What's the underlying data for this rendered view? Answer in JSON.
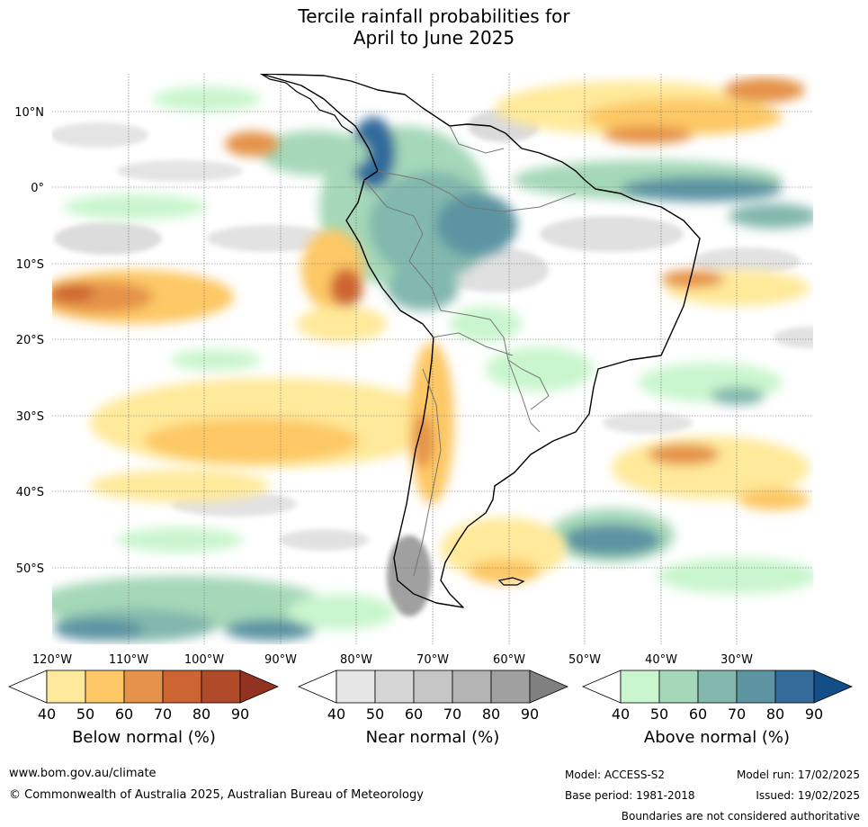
{
  "title_line1": "Tercile rainfall probabilities for",
  "title_line2": "April to June 2025",
  "map": {
    "lat_labels": [
      "10°N",
      "0°",
      "10°S",
      "20°S",
      "30°S",
      "40°S",
      "50°S"
    ],
    "lat_values": [
      10,
      0,
      -10,
      -20,
      -30,
      -40,
      -50
    ],
    "lon_labels": [
      "120°W",
      "110°W",
      "100°W",
      "90°W",
      "80°W",
      "70°W",
      "60°W",
      "50°W",
      "40°W",
      "30°W"
    ],
    "lon_values": [
      -120,
      -110,
      -100,
      -90,
      -80,
      -70,
      -60,
      -50,
      -40,
      -30
    ],
    "lat_range": [
      -60,
      15
    ],
    "lon_range": [
      -120,
      -20
    ],
    "gridlines": "dotted"
  },
  "legends": [
    {
      "title": "Below normal (%)",
      "ticks": [
        "40",
        "50",
        "60",
        "70",
        "80",
        "90"
      ],
      "colors": [
        "#ffffff",
        "#ffe99a",
        "#fdc865",
        "#e5934a",
        "#cd6532",
        "#b04a28",
        "#923322"
      ]
    },
    {
      "title": "Near normal (%)",
      "ticks": [
        "40",
        "50",
        "60",
        "70",
        "80",
        "90"
      ],
      "colors": [
        "#ffffff",
        "#e6e6e6",
        "#d6d6d6",
        "#c6c6c6",
        "#b4b4b4",
        "#a0a0a0",
        "#808080"
      ]
    },
    {
      "title": "Above normal (%)",
      "ticks": [
        "40",
        "50",
        "60",
        "70",
        "80",
        "90"
      ],
      "colors": [
        "#ffffff",
        "#c9f6ce",
        "#a5d8b8",
        "#82b8ad",
        "#5c94a2",
        "#336b9b",
        "#144e88"
      ]
    }
  ],
  "footer": {
    "website": "www.bom.gov.au/climate",
    "copyright": "© Commonwealth of Australia 2025, Australian Bureau of Meteorology",
    "model": "Model: ACCESS-S2",
    "model_run": "Model run: 17/02/2025",
    "base_period": "Base period: 1981-2018",
    "issued": "Issued: 19/02/2025",
    "disclaimer": "Boundaries are not considered authoritative"
  }
}
